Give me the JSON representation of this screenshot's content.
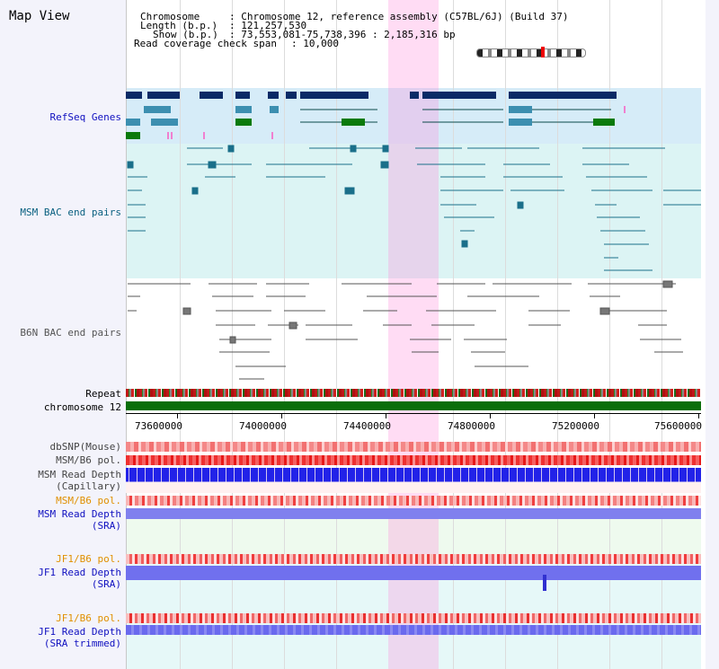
{
  "header": {
    "title": "Map View",
    "chromosome_key": "Chromosome",
    "chromosome_val": ": Chromosome 12, reference assembly (C57BL/6J) (Build 37)",
    "length_key": "Length (b.p.)",
    "length_val": ": 121,257,530",
    "show_key": "Show (b.p.)",
    "show_val": ": 73,553,081-75,738,396 : 2,185,316 bp",
    "coverage_key": "Read coverage check span",
    "coverage_val": ": 10,000"
  },
  "tracks": {
    "refseq": "RefSeq Genes",
    "msm_bac": "MSM BAC end pairs",
    "b6n_bac": "B6N BAC end pairs",
    "repeat": "Repeat",
    "chromosome": "chromosome 12",
    "dbsnp": "dbSNP(Mouse)",
    "msm_b6_pol_1": "MSM/B6 pol.",
    "msm_read_depth_cap_1": "MSM Read Depth",
    "msm_read_depth_cap_2": "(Capillary)",
    "msm_b6_pol_2": "MSM/B6 pol.",
    "msm_read_depth_sra_1": "MSM Read Depth",
    "msm_read_depth_sra_2": "(SRA)",
    "jf1_b6_pol_1": "JF1/B6 pol.",
    "jf1_read_depth_sra_1": "JF1 Read Depth",
    "jf1_read_depth_sra_2": "(SRA)",
    "jf1_b6_pol_2": "JF1/B6 pol.",
    "jf1_read_depth_trim_1": "JF1 Read Depth",
    "jf1_read_depth_trim_2": "(SRA trimmed)"
  },
  "axis": {
    "ticks": [
      "73600000",
      "74000000",
      "74400000",
      "74800000",
      "75200000",
      "75600000"
    ]
  },
  "colors": {
    "gene_dark": "#0a2a66",
    "gene_mid": "#3c8fb0",
    "gene_green": "#0b7a0b",
    "msm_line": "#1a6f8a",
    "b6n_line": "#555555",
    "depth_blue": "#1e1ee6",
    "depth_light": "#7a7af0",
    "highlight": "#ff8cdc"
  }
}
